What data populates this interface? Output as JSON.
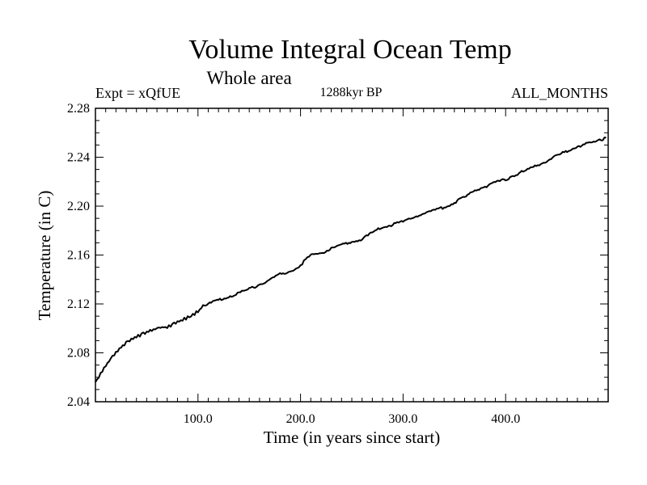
{
  "chart_data": {
    "type": "line",
    "title": "Volume Integral Ocean Temp",
    "subtitle": "Whole area",
    "left_label": "Expt = xQfUE",
    "center_label": "1288kyr BP",
    "right_label": "ALL_MONTHS",
    "xlabel": "Time (in years since start)",
    "ylabel": "Temperature (in C)",
    "xlim": [
      0,
      500
    ],
    "ylim": [
      2.04,
      2.28
    ],
    "x_ticks": [
      100,
      200,
      300,
      400
    ],
    "x_tick_labels": [
      "100.0",
      "200.0",
      "300.0",
      "400.0"
    ],
    "y_ticks": [
      2.04,
      2.08,
      2.12,
      2.16,
      2.2,
      2.24,
      2.28
    ],
    "y_tick_labels": [
      "2.04",
      "2.08",
      "2.12",
      "2.16",
      "2.20",
      "2.24",
      "2.28"
    ],
    "grid": false,
    "series": [
      {
        "name": "Volume Integral Ocean Temp",
        "color": "#000000",
        "x": [
          0,
          5,
          10,
          15,
          20,
          25,
          30,
          35,
          40,
          45,
          50,
          55,
          60,
          65,
          70,
          75,
          80,
          85,
          90,
          95,
          100,
          105,
          110,
          120,
          130,
          140,
          150,
          160,
          170,
          180,
          190,
          200,
          205,
          210,
          220,
          230,
          240,
          250,
          260,
          270,
          280,
          290,
          300,
          310,
          320,
          330,
          340,
          350,
          360,
          370,
          380,
          390,
          400,
          410,
          420,
          430,
          440,
          450,
          460,
          470,
          480,
          490,
          498
        ],
        "values": [
          2.056,
          2.063,
          2.069,
          2.075,
          2.08,
          2.085,
          2.088,
          2.091,
          2.093,
          2.095,
          2.097,
          2.098,
          2.1,
          2.101,
          2.101,
          2.103,
          2.105,
          2.107,
          2.109,
          2.111,
          2.114,
          2.118,
          2.12,
          2.123,
          2.126,
          2.129,
          2.132,
          2.136,
          2.14,
          2.144,
          2.147,
          2.151,
          2.157,
          2.16,
          2.162,
          2.165,
          2.168,
          2.171,
          2.173,
          2.178,
          2.183,
          2.185,
          2.187,
          2.191,
          2.194,
          2.196,
          2.199,
          2.203,
          2.207,
          2.213,
          2.216,
          2.219,
          2.222,
          2.226,
          2.229,
          2.233,
          2.237,
          2.241,
          2.245,
          2.249,
          2.251,
          2.253,
          2.256
        ]
      }
    ]
  }
}
